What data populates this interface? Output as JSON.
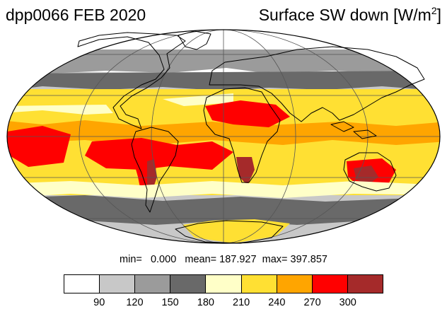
{
  "title_left": "dpp0066 FEB 2020",
  "title_right_main": "Surface SW down [W/m",
  "title_right_sup": "2",
  "title_right_end": "]",
  "stats": {
    "min_label": "min=",
    "min_value": "0.000",
    "mean_label": "mean=",
    "mean_value": "187.927",
    "max_label": "max=",
    "max_value": "397.857"
  },
  "colorbar": {
    "colors": [
      "#ffffff",
      "#c8c8c8",
      "#9b9b9b",
      "#696969",
      "#ffffc8",
      "#ffe033",
      "#ffa500",
      "#ff0000",
      "#a52a2a"
    ],
    "labels": [
      "90",
      "120",
      "150",
      "180",
      "210",
      "240",
      "270",
      "300"
    ]
  },
  "map_colors": {
    "ocean_bright_ice": "#ffffff",
    "light_gray": "#c8c8c8",
    "mid_gray": "#9b9b9b",
    "dark_gray": "#696969",
    "pale_yellow": "#ffffc8",
    "yellow": "#ffe033",
    "orange": "#ffa500",
    "red": "#ff0000",
    "brown": "#a52a2a",
    "coast": "#000000",
    "grid": "#555555"
  }
}
